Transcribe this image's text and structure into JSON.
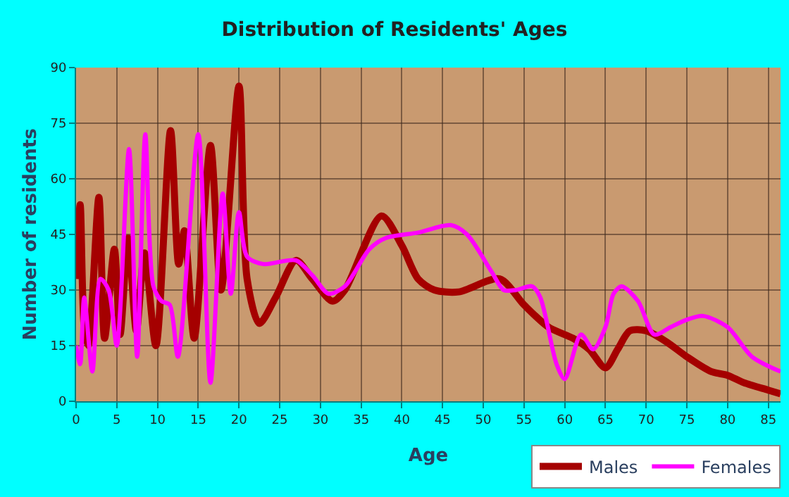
{
  "chart_data": {
    "type": "line",
    "title": "Distribution of Residents' Ages",
    "xlabel": "Age",
    "ylabel": "Number of residents",
    "xlim": [
      0,
      86.5
    ],
    "xticks": [
      0,
      5,
      10,
      15,
      20,
      25,
      30,
      35,
      40,
      45,
      50,
      55,
      60,
      65,
      70,
      75,
      80,
      85
    ],
    "ylim": [
      0,
      90
    ],
    "yticks": [
      0,
      15,
      30,
      45,
      60,
      75,
      90
    ],
    "grid": true,
    "legend": "bottom right",
    "marker": "none",
    "line_style": "solid",
    "series": [
      {
        "name": "Males",
        "color": "#a50000",
        "x": [
          0,
          0.5,
          1,
          1.5,
          2.8,
          3.5,
          4.7,
          5.4,
          6.4,
          7.4,
          8.4,
          9.8,
          11.6,
          12.6,
          13.3,
          14.5,
          16.5,
          17.8,
          20,
          21,
          22.5,
          24.5,
          27,
          29,
          31.5,
          33,
          37.5,
          40,
          42,
          44,
          47,
          52,
          55,
          58,
          61,
          63,
          65,
          66.5,
          68,
          70,
          72.5,
          75,
          78,
          80,
          82,
          85,
          86.5
        ],
        "values": [
          33,
          53,
          20,
          15,
          55,
          17,
          41,
          18,
          44,
          19,
          40,
          15,
          73,
          37,
          46,
          17,
          69,
          30,
          85,
          33,
          21,
          28,
          38,
          33,
          27,
          30,
          50,
          42,
          33,
          30,
          29.5,
          33,
          26,
          20,
          17,
          14,
          9,
          14,
          19,
          19,
          16,
          12,
          8,
          7,
          5,
          3,
          2
        ]
      },
      {
        "name": "Females",
        "color": "#ff00ff",
        "x": [
          0,
          0.5,
          1,
          2,
          3,
          4,
          5,
          6.5,
          7.5,
          8.5,
          9.5,
          10.5,
          11.5,
          12.5,
          15,
          16.5,
          18,
          19,
          20,
          21,
          23,
          27,
          29,
          31,
          33,
          36,
          38,
          42,
          46,
          48,
          51,
          52.5,
          54,
          56,
          57,
          59,
          60,
          62,
          63.5,
          65,
          66,
          67,
          69,
          71,
          73,
          75,
          77,
          80,
          83,
          86.5
        ],
        "values": [
          15,
          10,
          28,
          8,
          33,
          30,
          15,
          68,
          12,
          72,
          31,
          27,
          26,
          12,
          72,
          5,
          56,
          29,
          51,
          39,
          37,
          38,
          34,
          29,
          31,
          41,
          44,
          45.5,
          47.5,
          45,
          35,
          30,
          30,
          31,
          28,
          10,
          6,
          18,
          14,
          20,
          29,
          31,
          27,
          18,
          20,
          22,
          23,
          20,
          12,
          8
        ]
      }
    ]
  }
}
